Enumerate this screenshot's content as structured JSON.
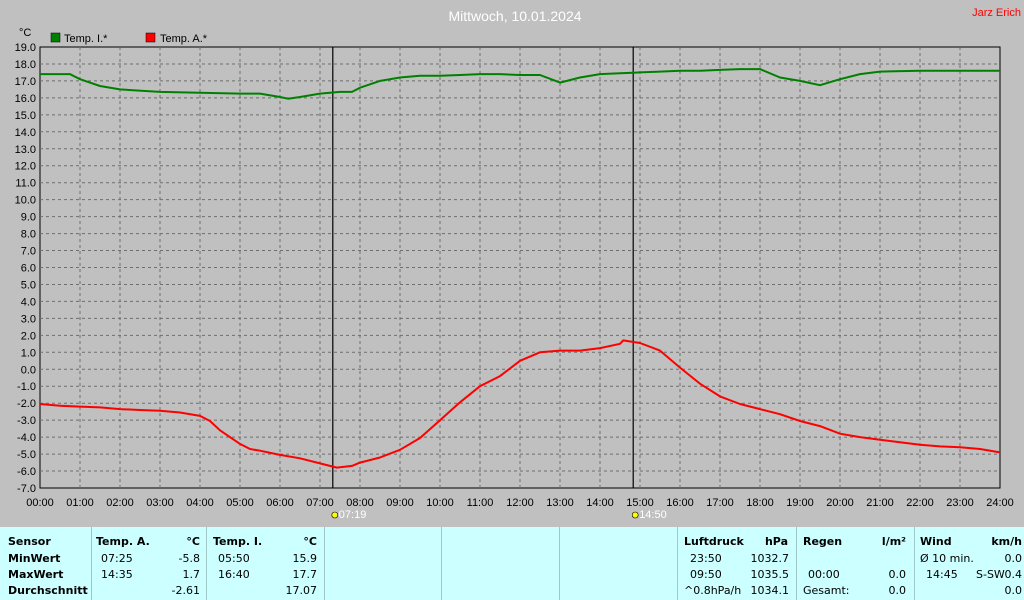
{
  "header": {
    "title": "Mittwoch, 10.01.2024",
    "station": "Jarz Erich"
  },
  "colors": {
    "series_inside": "#008000",
    "series_outside": "#ff0000",
    "background": "#c0c0c0",
    "table_bg": "#ccffff"
  },
  "chart_data": {
    "type": "line",
    "title": "Mittwoch, 10.01.2024",
    "ylabel": "°C",
    "xlabel": "",
    "ylim": [
      -7.0,
      19.0
    ],
    "xlim": [
      0,
      24
    ],
    "y_ticks": [
      "19.0",
      "18.0",
      "17.0",
      "16.0",
      "15.0",
      "14.0",
      "13.0",
      "12.0",
      "11.0",
      "10.0",
      "9.0",
      "8.0",
      "7.0",
      "6.0",
      "5.0",
      "4.0",
      "3.0",
      "2.0",
      "1.0",
      "0.0",
      "-1.0",
      "-2.0",
      "-3.0",
      "-4.0",
      "-5.0",
      "-6.0",
      "-7.0"
    ],
    "x_ticks": [
      "00:00",
      "01:00",
      "02:00",
      "03:00",
      "04:00",
      "05:00",
      "06:00",
      "07:00",
      "08:00",
      "09:00",
      "10:00",
      "11:00",
      "12:00",
      "13:00",
      "14:00",
      "15:00",
      "16:00",
      "17:00",
      "18:00",
      "19:00",
      "20:00",
      "21:00",
      "22:00",
      "23:00",
      "24:00"
    ],
    "grid": true,
    "legend_position": "top-left",
    "markers": [
      {
        "time": 7.32,
        "label": "07:19",
        "kind": "sunrise"
      },
      {
        "time": 14.83,
        "label": "14:50",
        "kind": "sunset"
      }
    ],
    "series": [
      {
        "name": "Temp. I.*",
        "x": [
          0,
          0.75,
          1,
          1.5,
          2,
          3,
          4,
          5,
          5.5,
          6,
          6.2,
          6.5,
          7,
          7.5,
          7.8,
          8,
          8.5,
          9,
          9.5,
          10,
          10.5,
          11,
          11.5,
          12,
          12.5,
          13,
          13.5,
          14,
          14.5,
          15,
          15.5,
          16,
          16.5,
          17,
          17.5,
          18,
          18.5,
          19,
          19.5,
          20,
          20.5,
          21,
          22,
          23,
          24
        ],
        "values": [
          17.4,
          17.4,
          17.1,
          16.7,
          16.5,
          16.35,
          16.3,
          16.25,
          16.25,
          16.05,
          15.95,
          16.05,
          16.25,
          16.35,
          16.35,
          16.6,
          17.0,
          17.2,
          17.3,
          17.3,
          17.35,
          17.4,
          17.4,
          17.35,
          17.35,
          16.9,
          17.2,
          17.4,
          17.45,
          17.5,
          17.55,
          17.6,
          17.6,
          17.65,
          17.7,
          17.7,
          17.2,
          17.0,
          16.75,
          17.1,
          17.4,
          17.55,
          17.6,
          17.6,
          17.6
        ]
      },
      {
        "name": "Temp. A.*",
        "x": [
          0,
          0.5,
          1,
          1.5,
          2,
          2.5,
          3,
          3.5,
          4,
          4.25,
          4.5,
          5,
          5.25,
          5.5,
          6,
          6.5,
          7,
          7.42,
          7.8,
          8,
          8.5,
          9,
          9.5,
          10,
          10.5,
          11,
          11.5,
          12,
          12.5,
          13,
          13.5,
          14,
          14.5,
          14.58,
          15,
          15.5,
          16,
          16.5,
          17,
          17.5,
          18,
          18.5,
          19,
          19.5,
          20,
          20.5,
          21,
          21.5,
          22,
          22.5,
          23,
          23.5,
          24
        ],
        "values": [
          -2.05,
          -2.15,
          -2.2,
          -2.25,
          -2.35,
          -2.4,
          -2.45,
          -2.55,
          -2.75,
          -3.05,
          -3.6,
          -4.4,
          -4.7,
          -4.8,
          -5.05,
          -5.25,
          -5.55,
          -5.8,
          -5.7,
          -5.5,
          -5.2,
          -4.75,
          -4.05,
          -3.0,
          -1.95,
          -1.0,
          -0.4,
          0.5,
          1.0,
          1.1,
          1.1,
          1.25,
          1.5,
          1.7,
          1.55,
          1.1,
          0.1,
          -0.85,
          -1.6,
          -2.05,
          -2.35,
          -2.65,
          -3.05,
          -3.35,
          -3.8,
          -4.0,
          -4.15,
          -4.3,
          -4.45,
          -4.55,
          -4.6,
          -4.7,
          -4.9
        ]
      }
    ]
  },
  "stats": {
    "sensor": {
      "title": "Sensor",
      "rows": [
        "MinWert",
        "MaxWert",
        "Durchschnitt"
      ]
    },
    "temp_a": {
      "title": "Temp. A.",
      "unit": "°C",
      "min_time": "07:25",
      "min_val": "-5.8",
      "max_time": "14:35",
      "max_val": "1.7",
      "avg": "-2.61"
    },
    "temp_i": {
      "title": "Temp. I.",
      "unit": "°C",
      "min_time": "05:50",
      "min_val": "15.9",
      "max_time": "16:40",
      "max_val": "17.7",
      "avg": "17.07"
    },
    "luftdruck": {
      "title": "Luftdruck",
      "unit": "hPa",
      "r1_time": "23:50",
      "r1_val": "1032.7",
      "r2_time": "09:50",
      "r2_val": "1035.5",
      "r3_label": "^0.8hPa/h",
      "r3_val": "1034.1"
    },
    "regen": {
      "title": "Regen",
      "unit": "l/m²",
      "r2_time": "00:00",
      "r2_val": "0.0",
      "r3_label": "Gesamt:",
      "r3_val": "0.0"
    },
    "wind": {
      "title": "Wind",
      "unit": "km/h",
      "r1_label": "Ø 10 min.",
      "r1_val": "0.0",
      "r2_time": "14:45",
      "r2_dir": "S-SW",
      "r2_val": "0.4",
      "r3_val": "0.0"
    }
  }
}
